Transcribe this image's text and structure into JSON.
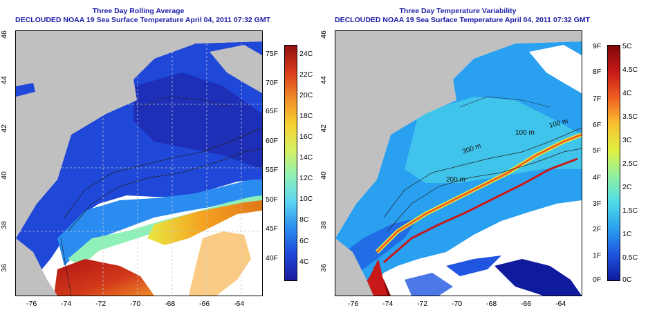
{
  "left_panel": {
    "title_line1": "Three Day Rolling Average",
    "title_line2": "DECLOUDED NOAA 19 Sea Surface Temperature April 04, 2011 07:32 GMT",
    "colorbar": {
      "colors": [
        "#1c1c9c",
        "#1f47d8",
        "#2a8cf0",
        "#5ad4f2",
        "#8ff0b8",
        "#d6f060",
        "#f6d030",
        "#f08a28",
        "#d83a1c",
        "#901010"
      ],
      "f_labels": [
        "40F",
        "45F",
        "50F",
        "55F",
        "60F",
        "65F",
        "70F",
        "75F"
      ],
      "c_labels": [
        "4C",
        "6C",
        "8C",
        "10C",
        "12C",
        "14C",
        "16C",
        "18C",
        "20C",
        "22C",
        "24C"
      ]
    }
  },
  "right_panel": {
    "title_line1": "Three Day Temperature Variability",
    "title_line2": "DECLOUDED NOAA 19 Sea Surface Temperature April 04, 2011 07:32 GMT",
    "contour_labels": [
      "300 m",
      "200 m",
      "100 m",
      "100 m"
    ],
    "colorbar": {
      "colors": [
        "#0f1a9c",
        "#1f55e0",
        "#2aa0f0",
        "#50dce8",
        "#90f0a0",
        "#e0f040",
        "#f8c030",
        "#f06020",
        "#c81818",
        "#800808"
      ],
      "f_labels": [
        "0F",
        "1F",
        "2F",
        "3F",
        "4F",
        "5F",
        "6F",
        "7F",
        "8F",
        "9F"
      ],
      "c_labels": [
        "0C",
        "0.5C",
        "1C",
        "1.5C",
        "2C",
        "2.5C",
        "3C",
        "3.5C",
        "4C",
        "4.5C",
        "5C"
      ]
    }
  },
  "axes": {
    "x_ticks": [
      "-76",
      "-74",
      "-72",
      "-70",
      "-68",
      "-66",
      "-64"
    ],
    "y_ticks": [
      "36",
      "38",
      "40",
      "42",
      "44",
      "46"
    ]
  },
  "colors": {
    "land": "#c0c0c0",
    "title": "#1c1ca8"
  }
}
